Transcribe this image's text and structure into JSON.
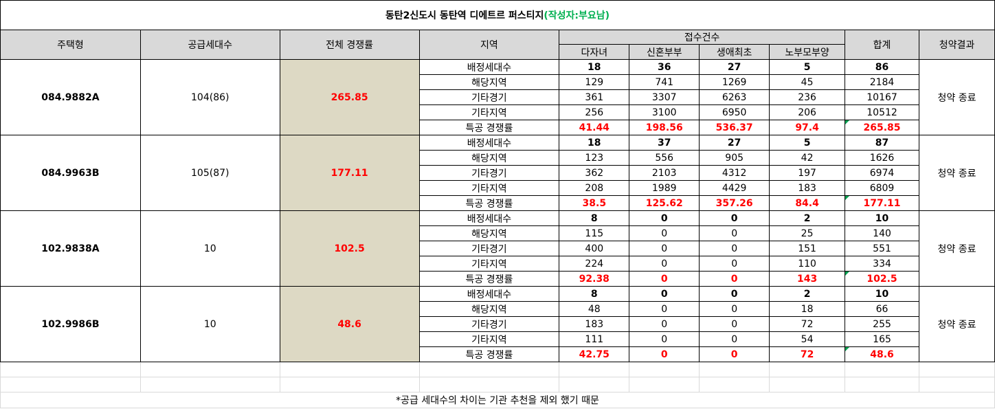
{
  "title": "동탄2신도시 동탄역 디에트르 퍼스티지",
  "title_note": "(작성자:부요남)",
  "headers": {
    "type": "주택형",
    "supply": "공급세대수",
    "overall_rate": "전체 경쟁률",
    "region": "지역",
    "receipts": "접수건수",
    "sub_cols": [
      "다자녀",
      "신혼부부",
      "생애최초",
      "노부모부양"
    ],
    "total": "합계",
    "result": "청약결과"
  },
  "groups": [
    {
      "type": "084.9882A",
      "supply": "104(86)",
      "overall_rate": "265.85",
      "result": "청약 종료",
      "rows": [
        {
          "label": "배정세대수",
          "values": [
            "18",
            "36",
            "27",
            "5"
          ],
          "total": "86"
        },
        {
          "label": "해당지역",
          "values": [
            "129",
            "741",
            "1269",
            "45"
          ],
          "total": "2184"
        },
        {
          "label": "기타경기",
          "values": [
            "361",
            "3307",
            "6263",
            "236"
          ],
          "total": "10167"
        },
        {
          "label": "기타지역",
          "values": [
            "256",
            "3100",
            "6950",
            "206"
          ],
          "total": "10512"
        },
        {
          "label": "특공 경쟁률",
          "values": [
            "41.44",
            "198.56",
            "536.37",
            "97.4"
          ],
          "total": "265.85"
        }
      ]
    },
    {
      "type": "084.9963B",
      "supply": "105(87)",
      "overall_rate": "177.11",
      "result": "청약 종료",
      "rows": [
        {
          "label": "배정세대수",
          "values": [
            "18",
            "37",
            "27",
            "5"
          ],
          "total": "87"
        },
        {
          "label": "해당지역",
          "values": [
            "123",
            "556",
            "905",
            "42"
          ],
          "total": "1626"
        },
        {
          "label": "기타경기",
          "values": [
            "362",
            "2103",
            "4312",
            "197"
          ],
          "total": "6974"
        },
        {
          "label": "기타지역",
          "values": [
            "208",
            "1989",
            "4429",
            "183"
          ],
          "total": "6809"
        },
        {
          "label": "특공 경쟁률",
          "values": [
            "38.5",
            "125.62",
            "357.26",
            "84.4"
          ],
          "total": "177.11"
        }
      ]
    },
    {
      "type": "102.9838A",
      "supply": "10",
      "overall_rate": "102.5",
      "result": "청약 종료",
      "rows": [
        {
          "label": "배정세대수",
          "values": [
            "8",
            "0",
            "0",
            "2"
          ],
          "total": "10"
        },
        {
          "label": "해당지역",
          "values": [
            "115",
            "0",
            "0",
            "25"
          ],
          "total": "140"
        },
        {
          "label": "기타경기",
          "values": [
            "400",
            "0",
            "0",
            "151"
          ],
          "total": "551"
        },
        {
          "label": "기타지역",
          "values": [
            "224",
            "0",
            "0",
            "110"
          ],
          "total": "334"
        },
        {
          "label": "특공 경쟁률",
          "values": [
            "92.38",
            "0",
            "0",
            "143"
          ],
          "total": "102.5"
        }
      ]
    },
    {
      "type": "102.9986B",
      "supply": "10",
      "overall_rate": "48.6",
      "result": "청약 종료",
      "rows": [
        {
          "label": "배정세대수",
          "values": [
            "8",
            "0",
            "0",
            "2"
          ],
          "total": "10"
        },
        {
          "label": "해당지역",
          "values": [
            "48",
            "0",
            "0",
            "18"
          ],
          "total": "66"
        },
        {
          "label": "기타경기",
          "values": [
            "183",
            "0",
            "0",
            "72"
          ],
          "total": "255"
        },
        {
          "label": "기타지역",
          "values": [
            "111",
            "0",
            "0",
            "54"
          ],
          "total": "165"
        },
        {
          "label": "특공 경쟁률",
          "values": [
            "42.75",
            "0",
            "0",
            "72"
          ],
          "total": "48.6"
        }
      ]
    }
  ],
  "footnote": "*공급 세대수의 차이는 기관 추천을 제외 했기 때문",
  "colors": {
    "header_bg": "#d9d9d9",
    "rate_bg": "#ddd9c4",
    "rate_text": "#ff0000",
    "note_text": "#00b050"
  }
}
